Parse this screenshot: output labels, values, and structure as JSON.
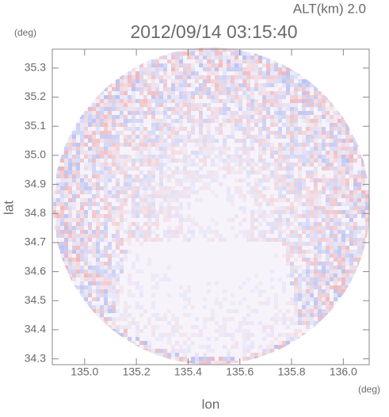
{
  "chart_data": {
    "type": "field",
    "title": "2012/09/14 03:15:40",
    "subtitle": "ALT(km) 2.0",
    "x_label": "lon",
    "y_label": "lat",
    "x_unit": "(deg)",
    "y_unit": "(deg)",
    "xlim": [
      134.875,
      136.1
    ],
    "ylim": [
      34.28,
      35.365
    ],
    "xticks": [
      {
        "value": 135,
        "label": "135.0"
      },
      135.2,
      135.4,
      135.6,
      135.8,
      {
        "value": 136,
        "label": "136.0"
      }
    ],
    "yticks": [
      34.3,
      34.4,
      34.5,
      34.6,
      34.7,
      34.8,
      34.9,
      {
        "value": 35,
        "label": "35.0"
      },
      35.1,
      35.2,
      35.3
    ]
  }
}
